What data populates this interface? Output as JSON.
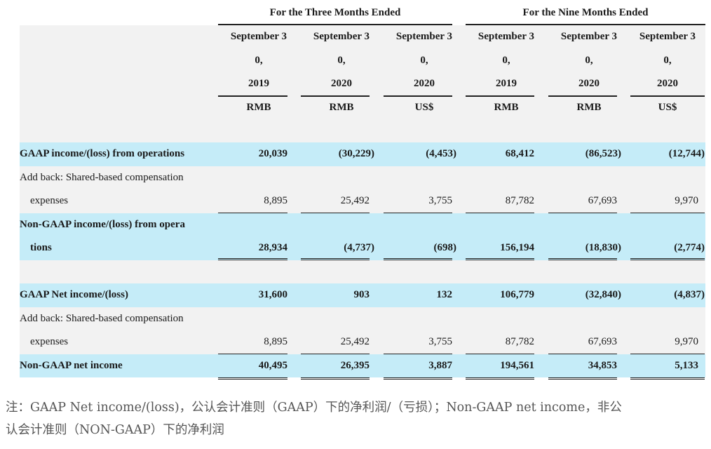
{
  "header": {
    "group1": "For the Three Months Ended",
    "group2": "For the Nine Months Ended",
    "columns": [
      {
        "l1": "September 3",
        "l2": "0,",
        "l3": "2019",
        "cur": "RMB"
      },
      {
        "l1": "September 3",
        "l2": "0,",
        "l3": "2020",
        "cur": "RMB"
      },
      {
        "l1": "September 3",
        "l2": "0,",
        "l3": "2020",
        "cur": "US$"
      },
      {
        "l1": "September 3",
        "l2": "0,",
        "l3": "2019",
        "cur": "RMB"
      },
      {
        "l1": "September 3",
        "l2": "0,",
        "l3": "2020",
        "cur": "RMB"
      },
      {
        "l1": "September 3",
        "l2": "0,",
        "l3": "2020",
        "cur": "US$"
      }
    ]
  },
  "rows": {
    "gaap_ops": {
      "label": "GAAP income/(loss) from operations",
      "v": [
        "20,039",
        "(30,229)",
        "(4,453)",
        "68,412",
        "(86,523)",
        "(12,744)"
      ]
    },
    "addback1": {
      "label1": "Add back: Shared-based compensation",
      "label2": "expenses",
      "v": [
        "8,895",
        "25,492",
        "3,755",
        "87,782",
        "67,693",
        "9,970"
      ]
    },
    "nongaap_ops": {
      "label1": "Non-GAAP income/(loss) from opera",
      "label2": "tions",
      "v": [
        "28,934",
        "(4,737)",
        "(698)",
        "156,194",
        "(18,830)",
        "(2,774)"
      ]
    },
    "gaap_net": {
      "label": "GAAP Net income/(loss)",
      "v": [
        "31,600",
        "903",
        "132",
        "106,779",
        "(32,840)",
        "(4,837)"
      ]
    },
    "addback2": {
      "label1": "Add back: Shared-based compensation",
      "label2": "expenses",
      "v": [
        "8,895",
        "25,492",
        "3,755",
        "87,782",
        "67,693",
        "9,970"
      ]
    },
    "nongaap_net": {
      "label": "Non-GAAP net income",
      "v": [
        "40,495",
        "26,395",
        "3,887",
        "194,561",
        "34,853",
        "5,133"
      ]
    }
  },
  "note": {
    "line1": "注：GAAP Net income/(loss)，公认会计准则（GAAP）下的净利润/（亏损）；Non-GAAP net income，非公",
    "line2": "认会计准则（NON-GAAP）下的净利润"
  }
}
